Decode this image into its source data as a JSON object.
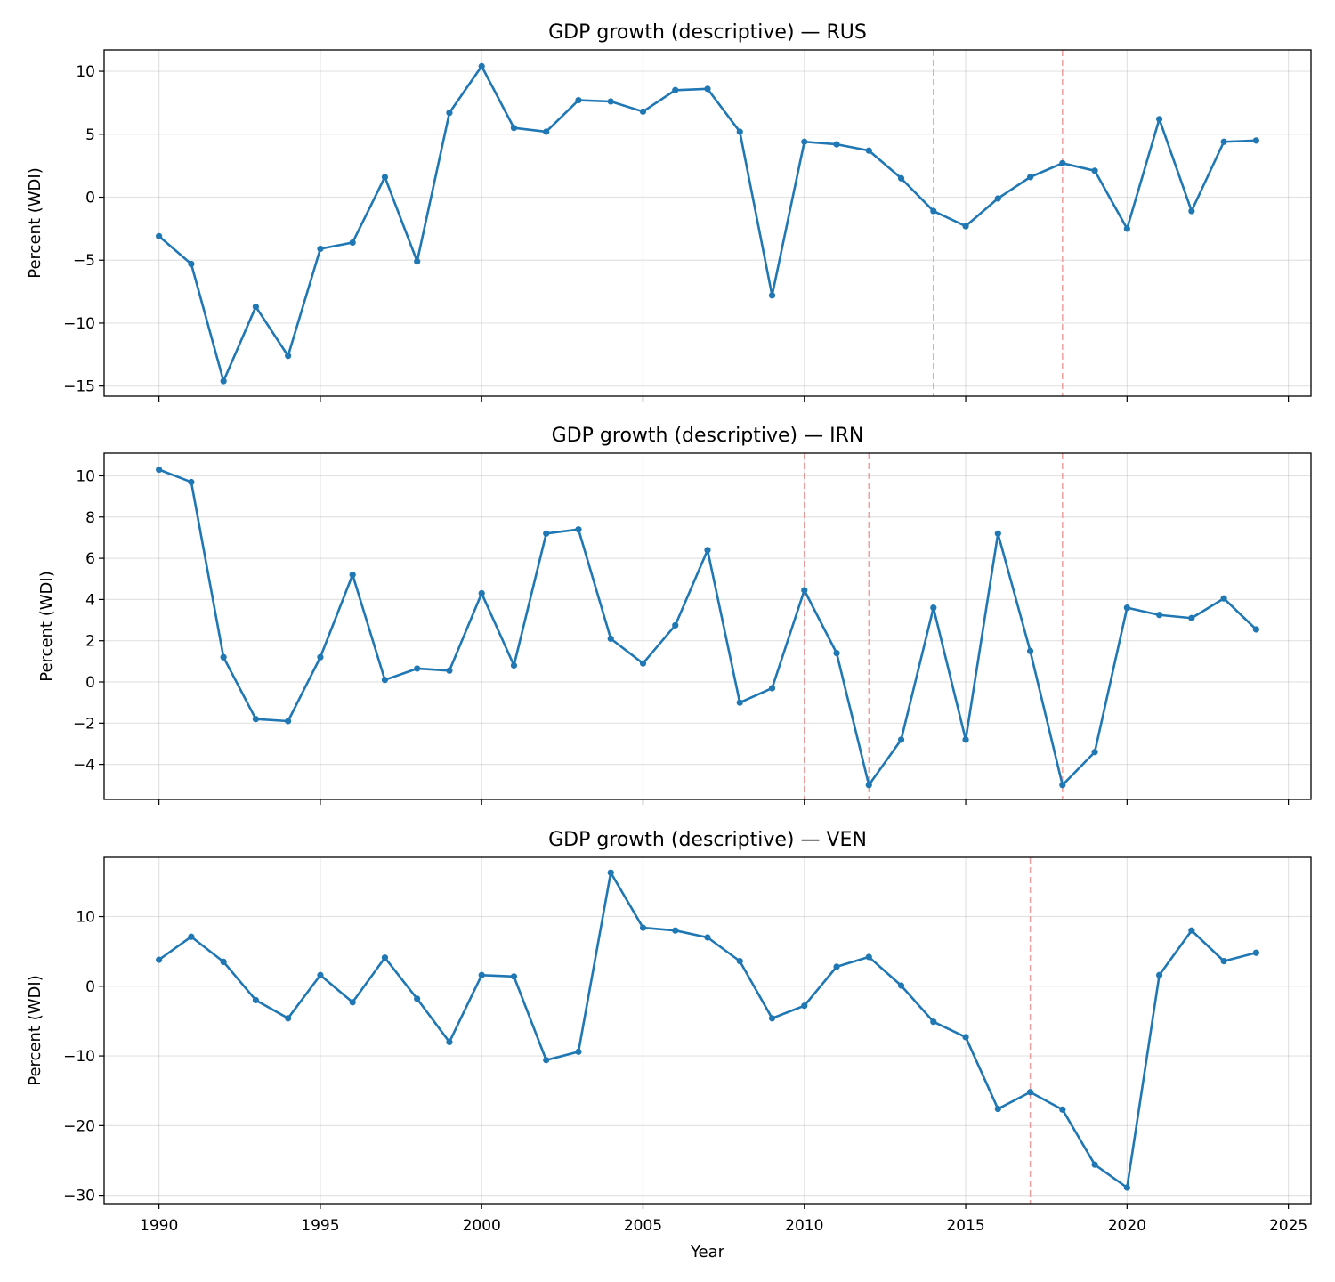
{
  "colors": {
    "series": "#1f77b4",
    "event_line": "#f08080",
    "grid": "#b0b0b0"
  },
  "chart_data": [
    {
      "type": "line",
      "title": "GDP growth (descriptive) — RUS",
      "ylabel": "Percent (WDI)",
      "xlabel": "",
      "xlim": [
        1988.3,
        2025.7
      ],
      "ylim": [
        -15.8,
        11.7
      ],
      "xticks": [
        1990,
        1995,
        2000,
        2005,
        2010,
        2015,
        2020,
        2025
      ],
      "show_xtick_labels": false,
      "yticks": [
        -15,
        -10,
        -5,
        0,
        5,
        10
      ],
      "grid": true,
      "event_years": [
        2014,
        2018
      ],
      "x": [
        1990,
        1991,
        1992,
        1993,
        1994,
        1995,
        1996,
        1997,
        1998,
        1999,
        2000,
        2001,
        2002,
        2003,
        2004,
        2005,
        2006,
        2007,
        2008,
        2009,
        2010,
        2011,
        2012,
        2013,
        2014,
        2015,
        2016,
        2017,
        2018,
        2019,
        2020,
        2021,
        2022,
        2023,
        2024
      ],
      "y": [
        -3.1,
        -5.3,
        -14.6,
        -8.7,
        -12.6,
        -4.1,
        -3.6,
        1.6,
        -5.1,
        6.7,
        10.4,
        5.5,
        5.2,
        7.7,
        7.6,
        6.8,
        8.5,
        8.6,
        5.2,
        -7.8,
        4.4,
        4.2,
        3.7,
        1.5,
        -1.1,
        -2.3,
        -0.1,
        1.6,
        2.7,
        2.1,
        -2.5,
        6.2,
        -1.1,
        4.4,
        4.5
      ]
    },
    {
      "type": "line",
      "title": "GDP growth (descriptive) — IRN",
      "ylabel": "Percent (WDI)",
      "xlabel": "",
      "xlim": [
        1988.3,
        2025.7
      ],
      "ylim": [
        -5.7,
        11.1
      ],
      "xticks": [
        1990,
        1995,
        2000,
        2005,
        2010,
        2015,
        2020,
        2025
      ],
      "show_xtick_labels": false,
      "yticks": [
        -4,
        -2,
        0,
        2,
        4,
        6,
        8,
        10
      ],
      "grid": true,
      "event_years": [
        2010,
        2012,
        2018
      ],
      "x": [
        1990,
        1991,
        1992,
        1993,
        1994,
        1995,
        1996,
        1997,
        1998,
        1999,
        2000,
        2001,
        2002,
        2003,
        2004,
        2005,
        2006,
        2007,
        2008,
        2009,
        2010,
        2011,
        2012,
        2013,
        2014,
        2015,
        2016,
        2017,
        2018,
        2019,
        2020,
        2021,
        2022,
        2023,
        2024
      ],
      "y": [
        10.3,
        9.7,
        1.2,
        -1.8,
        -1.9,
        1.2,
        5.2,
        0.1,
        0.65,
        0.55,
        4.3,
        0.8,
        7.2,
        7.4,
        2.1,
        0.9,
        2.75,
        6.4,
        -1.0,
        -0.3,
        4.45,
        1.4,
        -5.0,
        -2.8,
        3.6,
        -2.8,
        7.2,
        1.5,
        -5.0,
        -3.4,
        3.6,
        3.25,
        3.1,
        4.05,
        2.55
      ]
    },
    {
      "type": "line",
      "title": "GDP growth (descriptive) — VEN",
      "ylabel": "Percent (WDI)",
      "xlabel": "Year",
      "xlim": [
        1988.3,
        2025.7
      ],
      "ylim": [
        -31.2,
        18.5
      ],
      "xticks": [
        1990,
        1995,
        2000,
        2005,
        2010,
        2015,
        2020,
        2025
      ],
      "show_xtick_labels": true,
      "yticks": [
        -30,
        -20,
        -10,
        0,
        10
      ],
      "grid": true,
      "event_years": [
        2017
      ],
      "x": [
        1990,
        1991,
        1992,
        1993,
        1994,
        1995,
        1996,
        1997,
        1998,
        1999,
        2000,
        2001,
        2002,
        2003,
        2004,
        2005,
        2006,
        2007,
        2008,
        2009,
        2010,
        2011,
        2012,
        2013,
        2014,
        2015,
        2016,
        2017,
        2018,
        2019,
        2020,
        2021,
        2022,
        2023,
        2024
      ],
      "y": [
        3.8,
        7.1,
        3.5,
        -2.0,
        -4.6,
        1.6,
        -2.3,
        4.1,
        -1.8,
        -8.0,
        1.6,
        1.4,
        -10.6,
        -9.4,
        16.3,
        8.4,
        8.0,
        7.0,
        3.6,
        -4.6,
        -2.8,
        2.8,
        4.2,
        0.1,
        -5.1,
        -7.3,
        -17.6,
        -15.2,
        -17.7,
        -25.6,
        -28.9,
        1.6,
        8.0,
        3.6,
        4.8
      ]
    }
  ]
}
